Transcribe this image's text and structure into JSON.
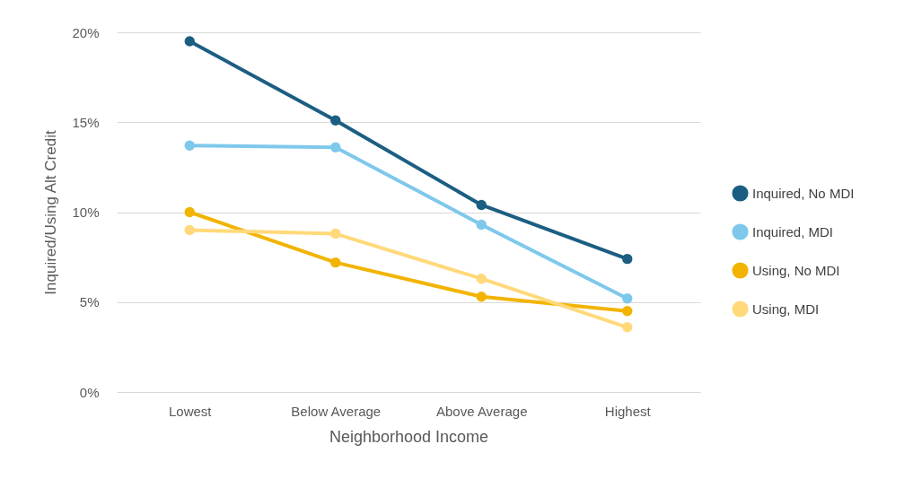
{
  "chart_data": {
    "type": "line",
    "xlabel": "Neighborhood Income",
    "ylabel": "Inquired/Using Alt Credit",
    "categories": [
      "Lowest",
      "Below Average",
      "Above Average",
      "Highest"
    ],
    "series": [
      {
        "name": "Inquired, No MDI",
        "color": "#1b5e82",
        "values": [
          19.5,
          15.1,
          10.4,
          7.4
        ]
      },
      {
        "name": "Inquired, MDI",
        "color": "#7ec8ec",
        "values": [
          13.7,
          13.6,
          9.3,
          5.2
        ]
      },
      {
        "name": "Using, No MDI",
        "color": "#f2b400",
        "values": [
          10.0,
          7.2,
          5.3,
          4.5
        ]
      },
      {
        "name": "Using, MDI",
        "color": "#ffd97a",
        "values": [
          9.0,
          8.8,
          6.3,
          3.6
        ]
      }
    ],
    "ylim": [
      0,
      20
    ],
    "yticks": [
      {
        "value": 0,
        "label": "0%"
      },
      {
        "value": 5,
        "label": "5%"
      },
      {
        "value": 10,
        "label": "10%"
      },
      {
        "value": 15,
        "label": "15%"
      },
      {
        "value": 20,
        "label": "20%"
      }
    ],
    "grid": "y",
    "legend": "right",
    "marker": "circle",
    "line_style": "solid"
  }
}
